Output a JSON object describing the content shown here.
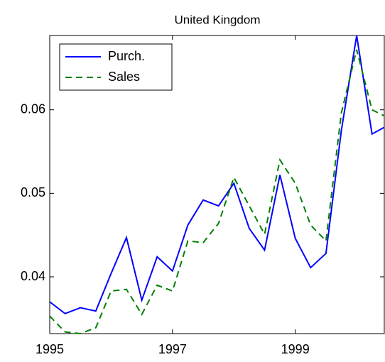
{
  "chart_data": {
    "type": "line",
    "title": "United Kingdom",
    "x": [
      1995,
      1995.25,
      1995.5,
      1995.75,
      1996,
      1996.25,
      1996.5,
      1996.75,
      1997,
      1997.25,
      1997.5,
      1997.75,
      1998,
      1998.25,
      1998.5,
      1998.75,
      1999,
      1999.25,
      1999.5,
      1999.75,
      2000,
      2000.25,
      2000.5
    ],
    "series": [
      {
        "name": "Purch.",
        "color": "#0000ff",
        "style": "solid",
        "values": [
          0.037,
          0.0356,
          0.0363,
          0.0359,
          0.0404,
          0.0447,
          0.0372,
          0.0424,
          0.0407,
          0.0462,
          0.0492,
          0.0485,
          0.0512,
          0.0458,
          0.0432,
          0.0522,
          0.0446,
          0.0411,
          0.0428,
          0.0575,
          0.0689,
          0.0571,
          0.0581
        ]
      },
      {
        "name": "Sales",
        "color": "#007f00",
        "style": "dashed",
        "values": [
          0.0353,
          0.0334,
          0.0332,
          0.0339,
          0.0383,
          0.0385,
          0.0355,
          0.039,
          0.0383,
          0.0443,
          0.0441,
          0.0464,
          0.0519,
          0.0485,
          0.0451,
          0.054,
          0.0512,
          0.0462,
          0.0443,
          0.0596,
          0.0672,
          0.06,
          0.0591
        ]
      }
    ],
    "xlim": [
      1995,
      2000.45
    ],
    "xticks": [
      1995,
      1997,
      1999
    ],
    "ylim": [
      0.0332,
      0.0689
    ],
    "yticks": [
      0.04,
      0.05,
      0.06
    ],
    "legend": "upper-left",
    "grid": false
  }
}
